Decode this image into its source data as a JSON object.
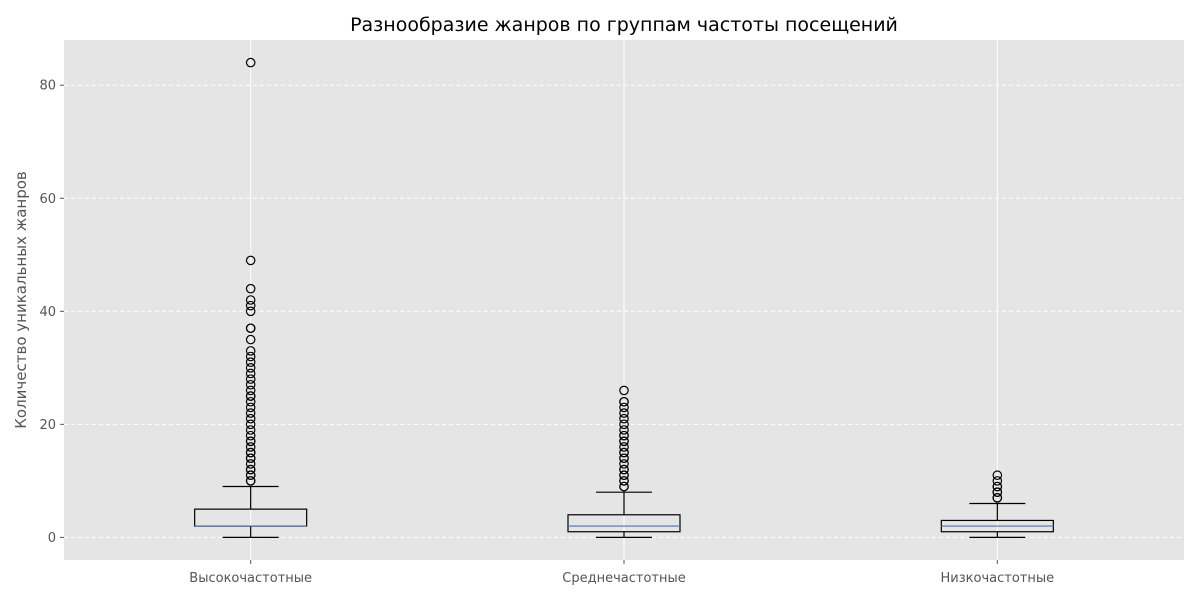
{
  "chart_data": {
    "type": "box",
    "title": "Разнообразие жанров по группам частоты посещений",
    "xlabel": "",
    "ylabel": "Количество уникальных жанров",
    "ylim": [
      -4,
      88
    ],
    "yticks": [
      0,
      20,
      40,
      60,
      80
    ],
    "categories": [
      "Высокочастотные",
      "Среднечастотные",
      "Низкочастотные"
    ],
    "grid": true,
    "boxes": [
      {
        "category": "Высокочастотные",
        "whisker_low": 0,
        "q1": 2,
        "median": 2,
        "q3": 5,
        "whisker_high": 9,
        "outliers": [
          10,
          10,
          11,
          11,
          12,
          12,
          13,
          14,
          14,
          15,
          15,
          16,
          17,
          17,
          18,
          19,
          20,
          21,
          22,
          23,
          24,
          25,
          25,
          26,
          27,
          28,
          29,
          30,
          31,
          32,
          33,
          35,
          37,
          37,
          40,
          41,
          42,
          44,
          49,
          84
        ]
      },
      {
        "category": "Среднечастотные",
        "whisker_low": 0,
        "q1": 1,
        "median": 2,
        "q3": 4,
        "whisker_high": 8,
        "outliers": [
          9,
          9,
          10,
          10,
          11,
          11,
          12,
          12,
          13,
          14,
          14,
          15,
          15,
          16,
          17,
          17,
          18,
          18,
          19,
          20,
          21,
          22,
          23,
          24,
          24,
          26
        ]
      },
      {
        "category": "Низкочастотные",
        "whisker_low": 0,
        "q1": 1,
        "median": 2,
        "q3": 3,
        "whisker_high": 6,
        "outliers": [
          7,
          7,
          8,
          8,
          9,
          9,
          10,
          11
        ]
      }
    ],
    "colors": {
      "background": "#e5e5e5",
      "grid": "#ffffff",
      "box": "#000000",
      "median": "#4c72b0",
      "text": "#555555"
    }
  }
}
